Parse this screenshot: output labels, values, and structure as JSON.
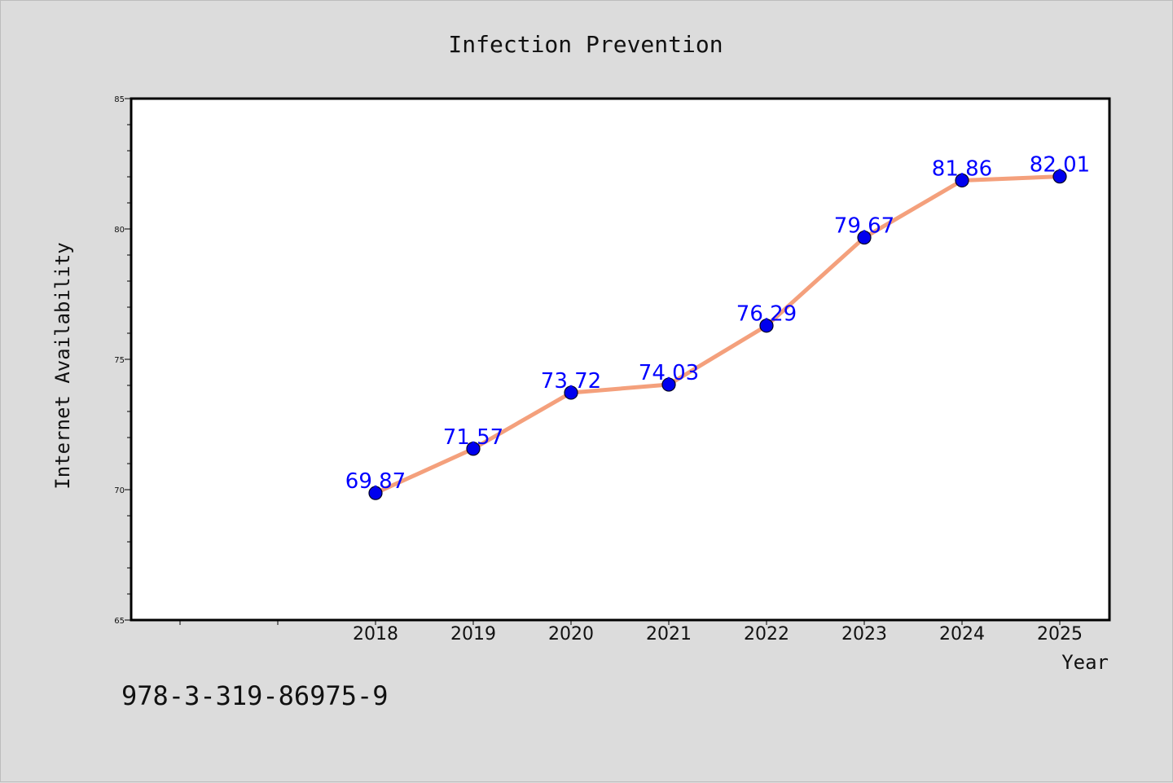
{
  "chart_data": {
    "type": "line",
    "title": "Infection Prevention",
    "xlabel": "Year",
    "ylabel": "Internet Availability",
    "x": [
      "2018",
      "2019",
      "2020",
      "2021",
      "2022",
      "2023",
      "2024",
      "2025"
    ],
    "series": [
      {
        "values": [
          69.87,
          71.57,
          73.72,
          74.03,
          76.29,
          79.67,
          81.86,
          82.01
        ]
      }
    ],
    "data_labels": [
      "69.87",
      "71.57",
      "73.72",
      "74.03",
      "76.29",
      "79.67",
      "81.86",
      "82.01"
    ],
    "ylim": [
      65,
      85
    ],
    "y_ticks": [
      "65",
      "70",
      "75",
      "80",
      "85"
    ],
    "grid": false,
    "legend": "none",
    "colors": {
      "line": "#f4a07c",
      "marker": "#0000ee",
      "label": "#0000ff",
      "background": "#dcdcdc",
      "plot": "#ffffff"
    }
  },
  "annotation": {
    "isbn": "978-3-319-86975-9"
  }
}
